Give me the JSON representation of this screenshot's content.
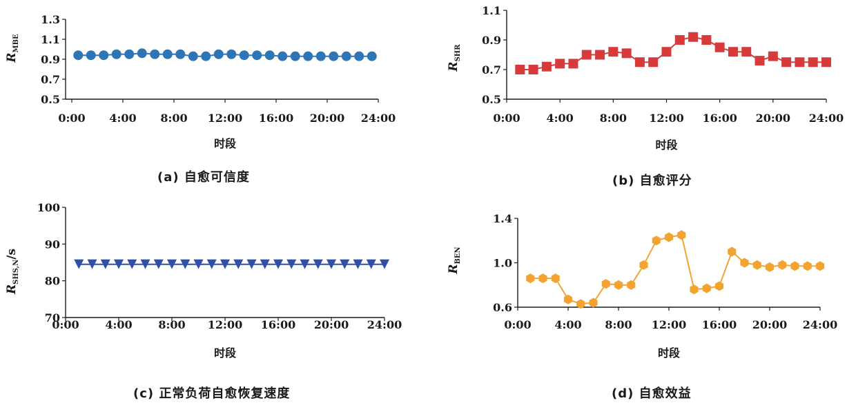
{
  "chart_data": [
    {
      "id": "a",
      "type": "line",
      "marker": "circle",
      "color": "#2e75b6",
      "caption": "(a) 自愈可信度",
      "xlabel": "时段",
      "ylabel": {
        "main": "R",
        "sub": "MBE",
        "unit": ""
      },
      "ylim": [
        0.5,
        1.3
      ],
      "yticks": [
        "0.5",
        "0.7",
        "0.9",
        "1.1",
        "1.3"
      ],
      "xlim": [
        0,
        24
      ],
      "xticks": [
        "0:00",
        "4:00",
        "8:00",
        "12:00",
        "16:00",
        "20:00",
        "24:00"
      ],
      "x": [
        0.5,
        1.5,
        2.5,
        3.5,
        4.5,
        5.5,
        6.5,
        7.5,
        8.5,
        9.5,
        10.5,
        11.5,
        12.5,
        13.5,
        14.5,
        15.5,
        16.5,
        17.5,
        18.5,
        19.5,
        20.5,
        21.5,
        22.5,
        23.5
      ],
      "values": [
        0.94,
        0.94,
        0.94,
        0.95,
        0.95,
        0.96,
        0.95,
        0.95,
        0.95,
        0.93,
        0.93,
        0.95,
        0.95,
        0.94,
        0.94,
        0.94,
        0.93,
        0.93,
        0.93,
        0.93,
        0.93,
        0.93,
        0.93,
        0.93
      ]
    },
    {
      "id": "b",
      "type": "line",
      "marker": "square",
      "color": "#d63a3a",
      "caption": "(b) 自愈评分",
      "xlabel": "时段",
      "ylabel": {
        "main": "R",
        "sub": "SHR",
        "unit": ""
      },
      "ylim": [
        0.5,
        1.1
      ],
      "yticks": [
        "0.5",
        "0.7",
        "0.9",
        "1.1"
      ],
      "xlim": [
        0,
        24
      ],
      "xticks": [
        "0:00",
        "4:00",
        "8:00",
        "12:00",
        "16:00",
        "20:00",
        "24:00"
      ],
      "x": [
        1,
        2,
        3,
        4,
        5,
        6,
        7,
        8,
        9,
        10,
        11,
        12,
        13,
        14,
        15,
        16,
        17,
        18,
        19,
        20,
        21,
        22,
        23,
        24
      ],
      "values": [
        0.7,
        0.7,
        0.72,
        0.74,
        0.74,
        0.8,
        0.8,
        0.82,
        0.81,
        0.75,
        0.75,
        0.82,
        0.9,
        0.92,
        0.9,
        0.85,
        0.82,
        0.82,
        0.76,
        0.79,
        0.75,
        0.75,
        0.75,
        0.75
      ]
    },
    {
      "id": "c",
      "type": "line",
      "marker": "triangle-down",
      "color": "#2f4fa8",
      "caption": "(c) 正常负荷自愈恢复速度",
      "xlabel": "时段",
      "ylabel": {
        "main": "R",
        "sub": "SHS,N",
        "unit": "/s"
      },
      "ylim": [
        70,
        100
      ],
      "yticks": [
        "70",
        "80",
        "90",
        "100"
      ],
      "xlim": [
        0,
        24
      ],
      "xticks": [
        "0:00",
        "4:00",
        "8:00",
        "12:00",
        "16:00",
        "20:00",
        "24:00"
      ],
      "x": [
        1,
        2,
        3,
        4,
        5,
        6,
        7,
        8,
        9,
        10,
        11,
        12,
        13,
        14,
        15,
        16,
        17,
        18,
        19,
        20,
        21,
        22,
        23,
        24
      ],
      "values": [
        84.5,
        84.5,
        84.5,
        84.5,
        84.5,
        84.5,
        84.5,
        84.5,
        84.5,
        84.5,
        84.5,
        84.5,
        84.5,
        84.5,
        84.5,
        84.5,
        84.5,
        84.5,
        84.5,
        84.5,
        84.5,
        84.5,
        84.5,
        84.5
      ]
    },
    {
      "id": "d",
      "type": "line",
      "marker": "hexagon",
      "color": "#f3a330",
      "caption": "(d) 自愈效益",
      "xlabel": "时段",
      "ylabel": {
        "main": "R",
        "sub": "BEN",
        "unit": ""
      },
      "ylim": [
        0.6,
        1.4
      ],
      "yticks": [
        "0.6",
        "1.0",
        "1.4"
      ],
      "xlim": [
        0,
        24
      ],
      "xticks": [
        "0:00",
        "4:00",
        "8:00",
        "12:00",
        "16:00",
        "20:00",
        "24:00"
      ],
      "x": [
        1,
        2,
        3,
        4,
        5,
        6,
        7,
        8,
        9,
        10,
        11,
        12,
        13,
        14,
        15,
        16,
        17,
        18,
        19,
        20,
        21,
        22,
        23,
        24
      ],
      "values": [
        0.86,
        0.86,
        0.86,
        0.67,
        0.63,
        0.64,
        0.81,
        0.8,
        0.8,
        0.98,
        1.2,
        1.23,
        1.25,
        0.76,
        0.77,
        0.79,
        1.1,
        1.0,
        0.98,
        0.96,
        0.98,
        0.97,
        0.97,
        0.97
      ]
    }
  ]
}
